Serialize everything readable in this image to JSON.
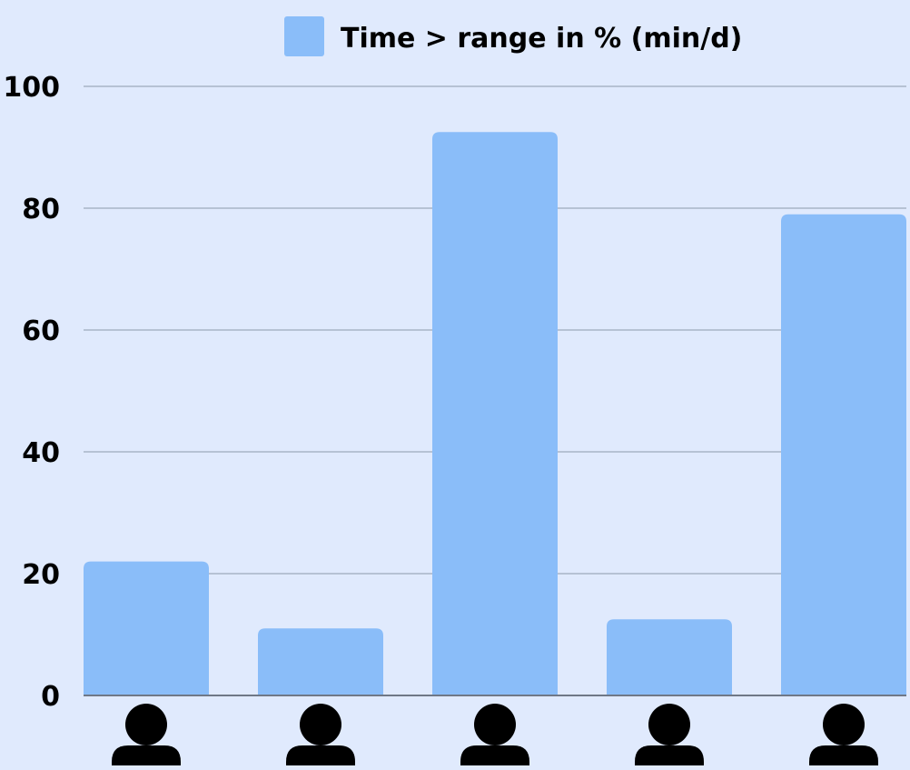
{
  "chart_data": {
    "type": "bar",
    "categories": [
      "",
      "",
      "",
      "",
      ""
    ],
    "category_icons": [
      "person-icon",
      "person-icon",
      "person-icon",
      "person-icon",
      "person-icon"
    ],
    "series": [
      {
        "name": "Time > range in % (min/d)",
        "values": [
          22,
          11,
          92.5,
          12.5,
          79
        ],
        "color": "#8abdf9"
      }
    ],
    "title": "",
    "xlabel": "",
    "ylabel": "",
    "ylim": [
      0,
      100
    ],
    "yticks": [
      0,
      20,
      40,
      60,
      80,
      100
    ],
    "ytick_labels": [
      "0",
      "20",
      "40",
      "60",
      "80",
      "100"
    ],
    "grid": true,
    "legend_position": "top-center",
    "colors": {
      "background": "#e0eafd",
      "bar": "#8abdf9",
      "grid": "#a8b4c7",
      "axis": "#6f7886",
      "text": "#000000",
      "icon": "#000000"
    }
  }
}
